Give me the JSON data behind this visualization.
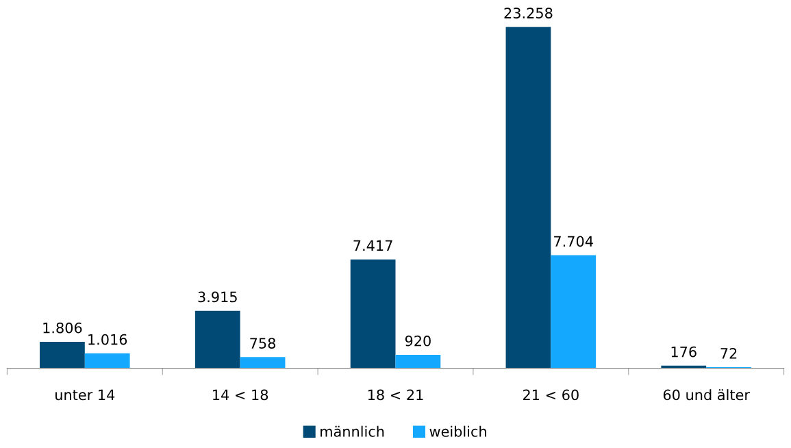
{
  "chart_data": {
    "type": "bar",
    "categories": [
      "unter 14",
      "14 < 18",
      "18 < 21",
      "21 < 60",
      "60 und älter"
    ],
    "series": [
      {
        "name": "männlich",
        "color": "#004a75",
        "values": [
          1806,
          3915,
          7417,
          23258,
          176
        ],
        "value_labels": [
          "1.806",
          "3.915",
          "7.417",
          "23.258",
          "176"
        ]
      },
      {
        "name": "weiblich",
        "color": "#14a9ff",
        "values": [
          1016,
          758,
          920,
          7704,
          72
        ],
        "value_labels": [
          "1.016",
          "758",
          "920",
          "7.704",
          "72"
        ]
      }
    ],
    "legend": "bottom",
    "grid": false,
    "tick_labels": "x"
  }
}
